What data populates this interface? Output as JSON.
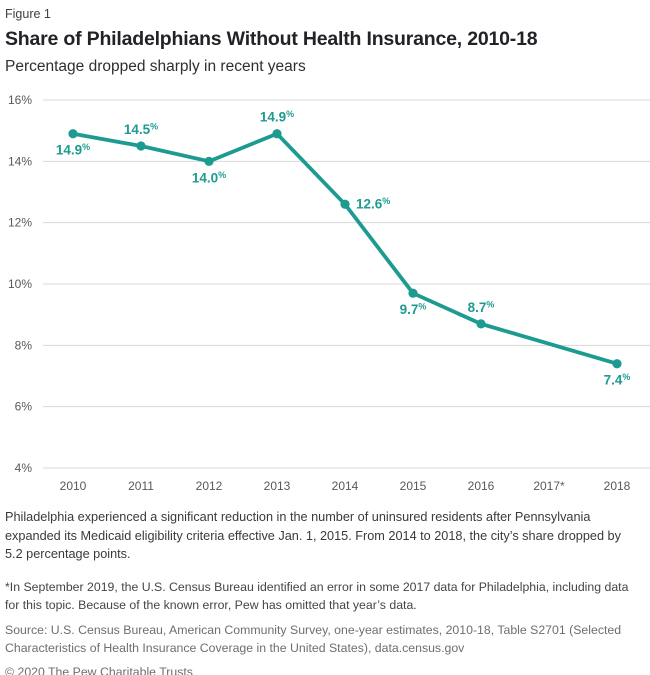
{
  "figure": {
    "label": "Figure 1"
  },
  "header": {
    "title": "Share of Philadelphians Without Health Insurance, 2010-18",
    "subtitle": "Percentage dropped sharply in recent years"
  },
  "chart_data": {
    "type": "line",
    "title": "Share of Philadelphians Without Health Insurance, 2010-18",
    "xlabel": "",
    "ylabel": "",
    "x_categories": [
      "2010",
      "2011",
      "2012",
      "2013",
      "2014",
      "2015",
      "2016",
      "2017*",
      "2018"
    ],
    "series": [
      {
        "name": "Share without health insurance",
        "values": [
          14.9,
          14.5,
          14.0,
          14.9,
          12.6,
          9.7,
          8.7,
          null,
          7.4
        ],
        "color": "#1E9B90"
      }
    ],
    "point_label_suffix": "%",
    "point_label_positions": [
      "below",
      "above",
      "below",
      "above",
      "right",
      "below",
      "above",
      null,
      "below"
    ],
    "ylim": [
      4,
      16
    ],
    "ytick_step": 2,
    "ytick_suffix": "%",
    "ytick_labels": [
      "16%",
      "14%",
      "12%",
      "10%",
      "8%",
      "6%",
      "4%"
    ],
    "grid": "horizontal",
    "legend_position": "none",
    "note": "2017 value omitted (marked with asterisk on axis)"
  },
  "notes": {
    "body": "Philadelphia experienced a significant reduction in the number of uninsured residents after Pennsylvania expanded its Medicaid eligibility criteria effective Jan. 1, 2015. From 2014 to 2018, the city’s share dropped by 5.2 percentage points.",
    "footnote": "*In September 2019, the U.S. Census Bureau identified an error in some 2017 data for Philadelphia, including data for this topic. Because of the known error, Pew has omitted that year’s data.",
    "source": "Source: U.S. Census Bureau, American Community Survey, one-year estimates, 2010-18, Table S2701 (Selected Characteristics of Health Insurance Coverage in the United States), data.census.gov",
    "copyright": "© 2020 The Pew Charitable Trusts"
  },
  "colors": {
    "accent_teal": "#1E9B90",
    "grid_line": "#D8D8D8",
    "axis_text": "#58595B",
    "title_text": "#232227"
  }
}
